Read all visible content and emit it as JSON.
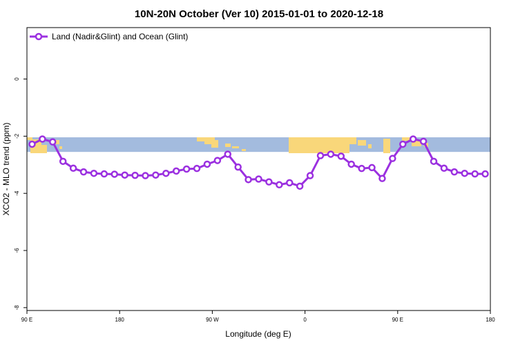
{
  "chart_data": {
    "type": "line",
    "title": "10N-20N October (Ver 10)   2015-01-01 to 2020-12-18",
    "xlabel": "Longitude (deg E)",
    "ylabel": "XCO2 - MLO trend (ppm)",
    "x_ticks": [
      {
        "value": 90,
        "label": "90 E"
      },
      {
        "value": 180,
        "label": "180"
      },
      {
        "value": 270,
        "label": "90 W"
      },
      {
        "value": 360,
        "label": "0"
      },
      {
        "value": 450,
        "label": "90 E"
      },
      {
        "value": 540,
        "label": "180"
      }
    ],
    "y_ticks": [
      {
        "value": 0,
        "label": "0"
      },
      {
        "value": -2,
        "label": "-2"
      },
      {
        "value": -4,
        "label": "-4"
      },
      {
        "value": -6,
        "label": "-6"
      },
      {
        "value": -8,
        "label": "-8"
      }
    ],
    "xlim": [
      90,
      540
    ],
    "ylim": [
      -8.1,
      1.8
    ],
    "grid": false,
    "legend_position": "top-left",
    "background_band": {
      "y_range": [
        -2.55,
        -2.0
      ],
      "ocean_color": "#a3bbde",
      "land_color": "#f9d77a"
    },
    "series": [
      {
        "name": "Land (Nadir&Glint) and Ocean (Glint)",
        "color": "#9b30e0",
        "x": [
          95,
          105,
          115,
          125,
          135,
          145,
          155,
          165,
          175,
          185,
          195,
          205,
          215,
          225,
          235,
          245,
          255,
          265,
          275,
          285,
          295,
          305,
          315,
          325,
          335,
          345,
          355,
          365,
          375,
          385,
          395,
          405,
          415,
          425,
          435,
          445,
          455,
          465,
          475,
          485,
          495,
          505,
          515,
          525,
          535
        ],
        "y": [
          -2.28,
          -2.1,
          -2.2,
          -2.88,
          -3.12,
          -3.25,
          -3.3,
          -3.32,
          -3.33,
          -3.36,
          -3.37,
          -3.38,
          -3.36,
          -3.3,
          -3.22,
          -3.15,
          -3.13,
          -2.98,
          -2.85,
          -2.63,
          -3.08,
          -3.52,
          -3.5,
          -3.6,
          -3.7,
          -3.63,
          -3.75,
          -3.38,
          -2.68,
          -2.63,
          -2.7,
          -2.98,
          -3.13,
          -3.1,
          -3.48,
          -2.78,
          -2.28,
          -2.1,
          -2.18,
          -2.88,
          -3.12,
          -3.25,
          -3.3,
          -3.32,
          -3.32
        ]
      }
    ]
  }
}
